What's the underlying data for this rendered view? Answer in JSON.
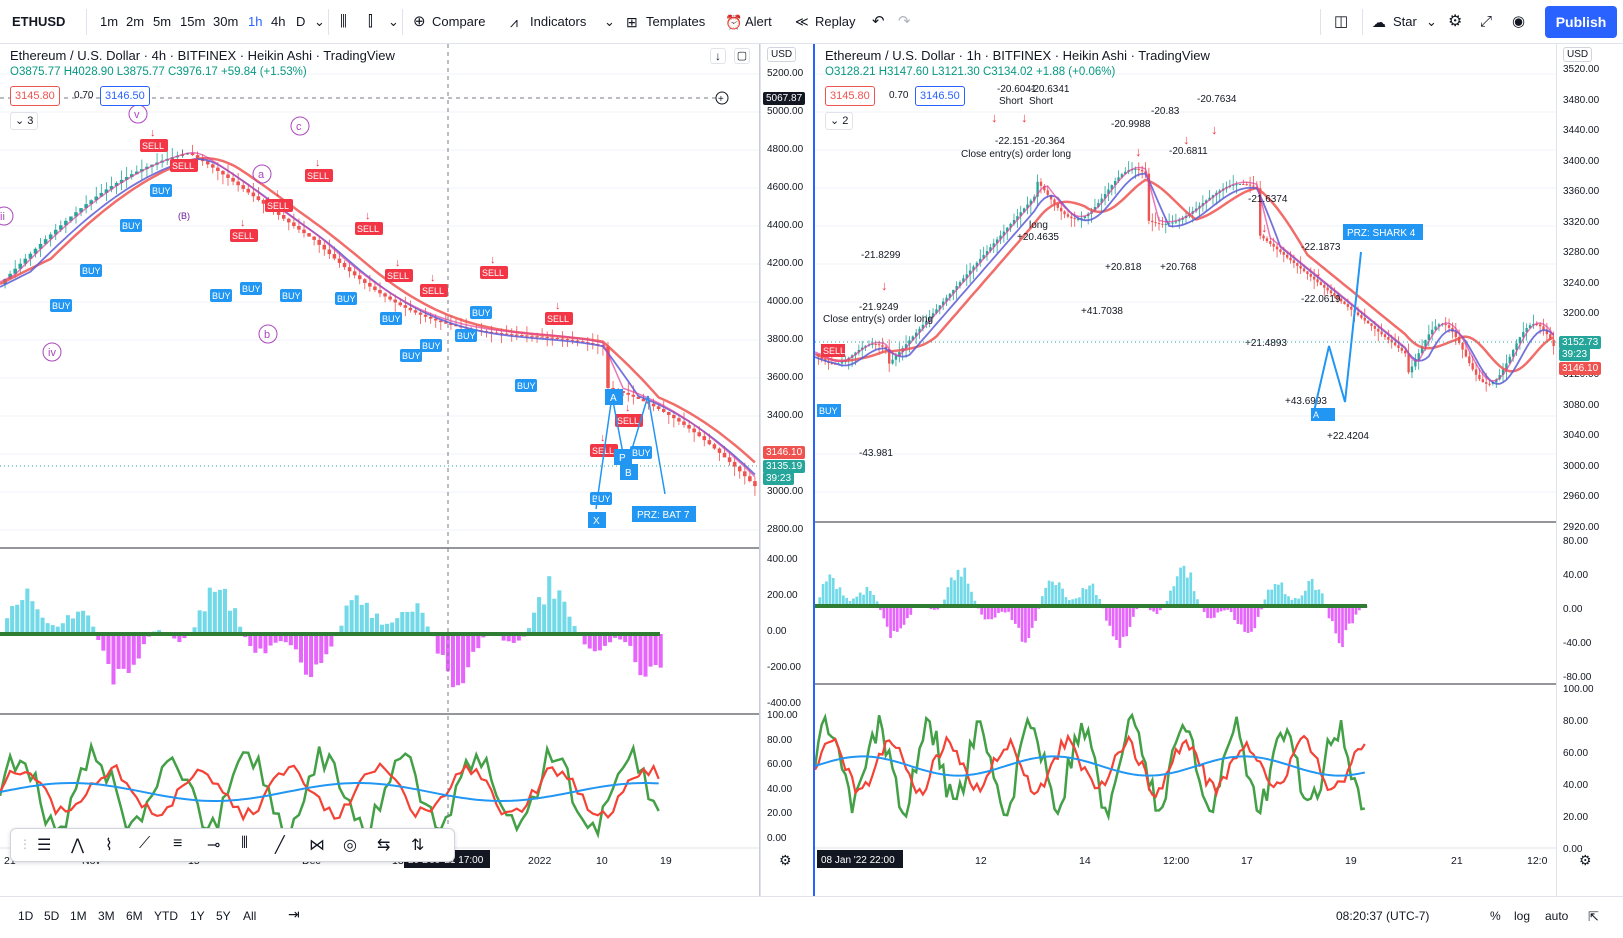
{
  "toolbar": {
    "symbol": "ETHUSD",
    "intervals": [
      "1m",
      "2m",
      "5m",
      "15m",
      "30m",
      "1h",
      "4h",
      "D"
    ],
    "active_interval": "1h",
    "compare": "Compare",
    "indicators": "Indicators",
    "templates": "Templates",
    "alert": "Alert",
    "replay": "Replay",
    "layout": "Star",
    "publish": "Publish"
  },
  "left": {
    "title": "Ethereum / U.S. Dollar · 4h · BITFINEX · Heikin Ashi · TradingView",
    "ohlc": "O3875.77 H4028.90 L3875.77 C3976.17 +59.84 (+1.53%)",
    "bid": "3145.80",
    "spread": "0.70",
    "ask": "3146.50",
    "collapse": "3",
    "currency": "USD",
    "price_ticks": [
      "5200.00",
      "5000.00",
      "4800.00",
      "4600.00",
      "4400.00",
      "4200.00",
      "4000.00",
      "3800.00",
      "3600.00",
      "3400.00",
      "3200.00",
      "3000.00",
      "2800.00"
    ],
    "crosshair_price": "5067.87",
    "last_price": "3146.10",
    "close_price": "3135.19",
    "countdown": "39:23",
    "osc1_ticks": [
      "400.00",
      "200.00",
      "0.00",
      "-200.00",
      "-400.00"
    ],
    "osc2_ticks": [
      "100.00",
      "80.00",
      "60.00",
      "40.00",
      "20.00",
      "0.00"
    ],
    "time_ticks": [
      "21",
      "Nov",
      "15",
      "Dec",
      "13",
      "2022",
      "10",
      "19"
    ],
    "crosshair_time": "20 Dec '21   17:00",
    "labels": {
      "buy": "BUY",
      "sell": "SELL",
      "prz": "PRZ: BAT 7",
      "x": "X",
      "a": "A",
      "b": "B",
      "p": "P",
      "c_wave": "c",
      "a_wave": "a",
      "b_wave": "b",
      "v_wave": "v",
      "iv_wave": "iv",
      "ii_wave": "ii",
      "b_paren": "(B)"
    }
  },
  "right": {
    "title": "Ethereum / U.S. Dollar · 1h · BITFINEX · Heikin Ashi · TradingView",
    "ohlc": "O3128.21 H3147.60 L3121.30 C3134.02 +1.88 (+0.06%)",
    "bid": "3145.80",
    "spread": "0.70",
    "ask": "3146.50",
    "collapse": "2",
    "currency": "USD",
    "price_ticks": [
      "3520.00",
      "3480.00",
      "3440.00",
      "3400.00",
      "3360.00",
      "3320.00",
      "3280.00",
      "3240.00",
      "3200.00",
      "3160.00",
      "3120.00",
      "3080.00",
      "3040.00",
      "3000.00",
      "2960.00",
      "2920.00"
    ],
    "close_price": "3152.73",
    "countdown": "39:23",
    "last_price": "3146.10",
    "osc1_ticks": [
      "80.00",
      "40.00",
      "0.00",
      "-40.00",
      "-80.00"
    ],
    "osc2_ticks": [
      "100.00",
      "80.00",
      "60.00",
      "40.00",
      "20.00",
      "0.00"
    ],
    "time_ticks": [
      "12",
      "14",
      "12:00",
      "17",
      "19",
      "21",
      "12:0"
    ],
    "crosshair_time": "08 Jan '22   22:00",
    "annotations": [
      "-20.6041",
      "-20.6341",
      "Short",
      "Short",
      "-22.151",
      "-20.364",
      "Close entry(s) order long",
      "-20.9988",
      "-20.83",
      "-20.7634",
      "-20.6811",
      "-21.8299",
      "-21.9249",
      "Close entry(s) order long",
      "-21.6374",
      "-22.1873",
      "-22.0619",
      "PRZ: SHARK 4",
      "+20.4635",
      "+41.7038",
      "+20.818",
      "+20.768",
      "+21.4893",
      "+43.6993",
      "+22.4204",
      "-43.981",
      "long",
      "BUY",
      "SELL",
      "A"
    ]
  },
  "bottombar": {
    "ranges": [
      "1D",
      "5D",
      "1M",
      "3M",
      "6M",
      "YTD",
      "1Y",
      "5Y",
      "All"
    ],
    "clock": "08:20:37 (UTC-7)",
    "pct": "%",
    "log": "log",
    "auto": "auto"
  },
  "colors": {
    "bull": "#26a69a",
    "bear": "#ef5350",
    "ma_red": "#ef5350",
    "ma_blue": "#5b5bd6",
    "ma_pink": "#e0409b",
    "osc_pos": "#4dd0e1",
    "osc_neg": "#e040fb",
    "rsi_green": "#43a047",
    "rsi_red": "#f44336",
    "rsi_blue": "#2196f3",
    "accent": "#2962ff"
  }
}
